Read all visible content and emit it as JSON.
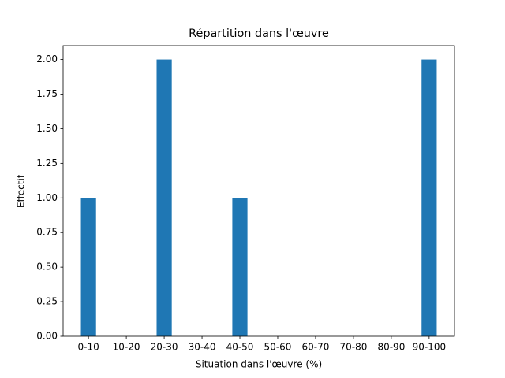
{
  "chart_data": {
    "type": "bar",
    "title": "Répartition dans l'œuvre",
    "xlabel": "Situation dans l'œuvre (%)",
    "ylabel": "Effectif",
    "categories": [
      "0-10",
      "10-20",
      "20-30",
      "30-40",
      "40-50",
      "50-60",
      "60-70",
      "70-80",
      "80-90",
      "90-100"
    ],
    "values": [
      1,
      0,
      2,
      0,
      1,
      0,
      0,
      0,
      0,
      2
    ],
    "color": "#1f77b4",
    "ylim": [
      0,
      2.1
    ],
    "yticks": [
      {
        "value": 0,
        "label": "0.00"
      },
      {
        "value": 0.25,
        "label": "0.25"
      },
      {
        "value": 0.5,
        "label": "0.50"
      },
      {
        "value": 0.75,
        "label": "0.75"
      },
      {
        "value": 1,
        "label": "1.00"
      },
      {
        "value": 1.25,
        "label": "1.25"
      },
      {
        "value": 1.5,
        "label": "1.50"
      },
      {
        "value": 1.75,
        "label": "1.75"
      },
      {
        "value": 2,
        "label": "2.00"
      }
    ],
    "grid": false
  }
}
